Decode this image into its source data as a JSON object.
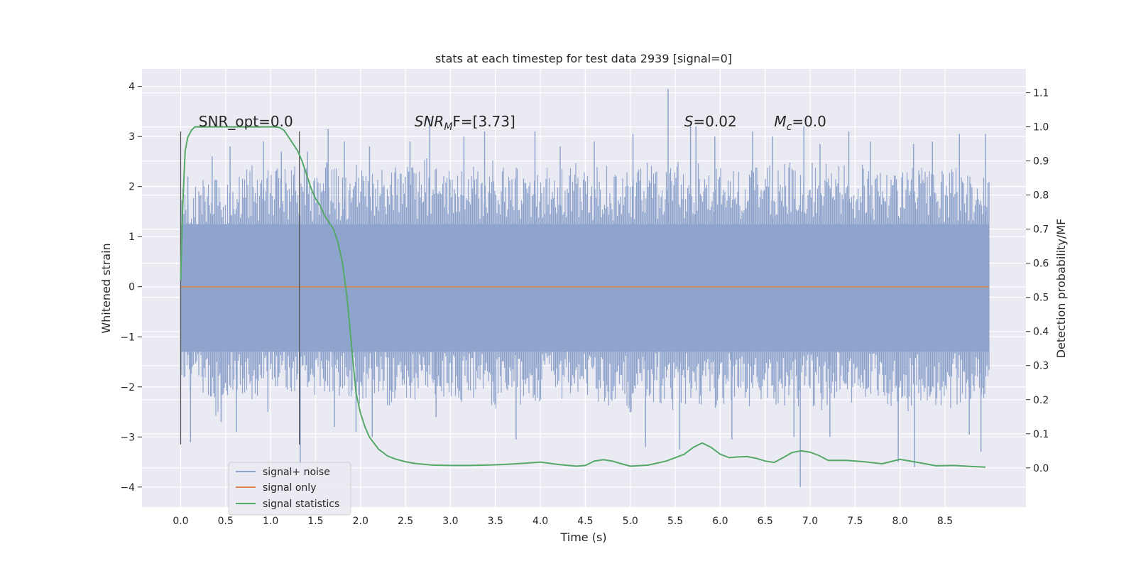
{
  "chart_data": {
    "type": "line",
    "title": "stats at each timestep for test data 2939 [signal=0]",
    "xlabel": "Time (s)",
    "ylabel": "Whitened strain",
    "y2label": "Detection probability/MF",
    "xlim": [
      -0.43,
      9.4
    ],
    "ylim": [
      -4.4,
      4.35
    ],
    "y2lim": [
      -0.115,
      1.17
    ],
    "xticks": [
      0.0,
      0.5,
      1.0,
      1.5,
      2.0,
      2.5,
      3.0,
      3.5,
      4.0,
      4.5,
      5.0,
      5.5,
      6.0,
      6.5,
      7.0,
      7.5,
      8.0,
      8.5
    ],
    "xtick_labels": [
      "0.0",
      "0.5",
      "1.0",
      "1.5",
      "2.0",
      "2.5",
      "3.0",
      "3.5",
      "4.0",
      "4.5",
      "5.0",
      "5.5",
      "6.0",
      "6.5",
      "7.0",
      "7.5",
      "8.0",
      "8.5"
    ],
    "yticks": [
      -4,
      -3,
      -2,
      -1,
      0,
      1,
      2,
      3,
      4
    ],
    "ytick_labels": [
      "−4",
      "−3",
      "−2",
      "−1",
      "0",
      "1",
      "2",
      "3",
      "4"
    ],
    "y2ticks": [
      0.0,
      0.1,
      0.2,
      0.3,
      0.4,
      0.5,
      0.6,
      0.7,
      0.8,
      0.9,
      1.0,
      1.1
    ],
    "y2tick_labels": [
      "0.0",
      "0.1",
      "0.2",
      "0.3",
      "0.4",
      "0.5",
      "0.6",
      "0.7",
      "0.8",
      "0.9",
      "1.0",
      "1.1"
    ],
    "grid": true,
    "legend_position": "lower-left",
    "series": [
      {
        "name": "signal+ noise",
        "color": "#8fa4cc",
        "x_range": [
          0.0,
          8.99
        ],
        "envelope": [
          [
            0.0,
            2.1,
            -2.0
          ],
          [
            0.1,
            2.15,
            -2.3
          ],
          [
            0.2,
            2.0,
            -2.1
          ],
          [
            0.3,
            2.4,
            -2.3
          ],
          [
            0.4,
            2.3,
            -2.6
          ],
          [
            0.5,
            2.0,
            -2.2
          ],
          [
            0.6,
            2.2,
            -2.1
          ],
          [
            0.7,
            2.3,
            -2.2
          ],
          [
            0.8,
            2.5,
            -2.4
          ],
          [
            0.9,
            2.2,
            -2.1
          ],
          [
            1.0,
            2.4,
            -2.0
          ],
          [
            1.1,
            2.6,
            -2.2
          ],
          [
            1.2,
            2.3,
            -2.3
          ],
          [
            1.3,
            2.5,
            -2.2
          ],
          [
            1.4,
            2.5,
            -2.1
          ],
          [
            1.5,
            2.3,
            -2.4
          ],
          [
            1.6,
            2.6,
            -2.1
          ],
          [
            1.7,
            2.5,
            -2.3
          ],
          [
            1.8,
            2.3,
            -2.2
          ],
          [
            1.9,
            2.4,
            -2.3
          ],
          [
            2.0,
            2.5,
            -2.4
          ],
          [
            2.1,
            2.3,
            -2.2
          ],
          [
            2.2,
            2.4,
            -2.3
          ],
          [
            2.3,
            2.3,
            -2.4
          ],
          [
            2.4,
            2.4,
            -2.3
          ],
          [
            2.5,
            2.5,
            -2.2
          ],
          [
            2.6,
            2.4,
            -2.4
          ],
          [
            2.7,
            2.6,
            -2.3
          ],
          [
            2.8,
            2.5,
            -2.2
          ],
          [
            2.9,
            2.4,
            -2.3
          ],
          [
            3.0,
            2.3,
            -2.3
          ],
          [
            3.1,
            2.5,
            -2.4
          ],
          [
            3.2,
            2.5,
            -2.3
          ],
          [
            3.3,
            2.4,
            -2.2
          ],
          [
            3.4,
            2.6,
            -2.3
          ],
          [
            3.5,
            2.5,
            -2.5
          ],
          [
            3.6,
            2.4,
            -2.4
          ],
          [
            3.7,
            2.5,
            -2.3
          ],
          [
            3.8,
            2.3,
            -2.4
          ],
          [
            3.9,
            2.4,
            -2.2
          ],
          [
            4.0,
            2.5,
            -2.4
          ],
          [
            4.1,
            2.4,
            -2.3
          ],
          [
            4.2,
            2.6,
            -2.4
          ],
          [
            4.3,
            2.4,
            -2.2
          ],
          [
            4.4,
            2.5,
            -2.3
          ],
          [
            4.5,
            2.3,
            -2.4
          ],
          [
            4.6,
            2.4,
            -2.3
          ],
          [
            4.7,
            2.5,
            -2.4
          ],
          [
            4.8,
            2.4,
            -2.5
          ],
          [
            4.9,
            2.3,
            -2.4
          ],
          [
            5.0,
            2.4,
            -2.6
          ],
          [
            5.1,
            2.5,
            -2.4
          ],
          [
            5.2,
            2.6,
            -2.5
          ],
          [
            5.3,
            2.4,
            -2.3
          ],
          [
            5.4,
            2.5,
            -2.4
          ],
          [
            5.5,
            2.6,
            -2.5
          ],
          [
            5.6,
            2.4,
            -2.4
          ],
          [
            5.7,
            2.5,
            -2.3
          ],
          [
            5.8,
            2.6,
            -2.4
          ],
          [
            5.9,
            2.5,
            -2.5
          ],
          [
            6.0,
            2.4,
            -2.4
          ],
          [
            6.1,
            2.5,
            -2.3
          ],
          [
            6.2,
            2.4,
            -2.4
          ],
          [
            6.3,
            2.5,
            -2.5
          ],
          [
            6.4,
            2.4,
            -2.4
          ],
          [
            6.5,
            2.5,
            -2.3
          ],
          [
            6.6,
            2.4,
            -2.4
          ],
          [
            6.7,
            2.6,
            -2.5
          ],
          [
            6.8,
            2.5,
            -2.4
          ],
          [
            6.9,
            2.4,
            -2.5
          ],
          [
            7.0,
            2.5,
            -2.4
          ],
          [
            7.1,
            2.4,
            -2.5
          ],
          [
            7.2,
            2.5,
            -2.4
          ],
          [
            7.3,
            2.4,
            -2.3
          ],
          [
            7.4,
            2.5,
            -2.4
          ],
          [
            7.5,
            2.4,
            -2.5
          ],
          [
            7.6,
            2.5,
            -2.4
          ],
          [
            7.7,
            2.4,
            -2.3
          ],
          [
            7.8,
            2.5,
            -2.4
          ],
          [
            7.9,
            2.4,
            -2.5
          ],
          [
            8.0,
            2.5,
            -2.4
          ],
          [
            8.1,
            2.4,
            -2.5
          ],
          [
            8.2,
            2.5,
            -2.4
          ],
          [
            8.3,
            2.3,
            -2.3
          ],
          [
            8.4,
            2.4,
            -2.4
          ],
          [
            8.5,
            2.3,
            -2.5
          ],
          [
            8.6,
            2.4,
            -2.4
          ],
          [
            8.7,
            2.3,
            -2.3
          ],
          [
            8.8,
            2.4,
            -2.4
          ],
          [
            8.9,
            2.3,
            -2.3
          ],
          [
            8.99,
            2.3,
            -2.2
          ]
        ],
        "spikes": [
          [
            0.08,
            2.2
          ],
          [
            0.11,
            -3.1
          ],
          [
            0.35,
            2.6
          ],
          [
            0.45,
            -2.7
          ],
          [
            0.55,
            2.8
          ],
          [
            0.62,
            -2.9
          ],
          [
            0.92,
            2.9
          ],
          [
            0.97,
            -2.5
          ],
          [
            1.12,
            2.7
          ],
          [
            1.33,
            -3.6
          ],
          [
            1.41,
            2.7
          ],
          [
            1.64,
            3.15
          ],
          [
            1.71,
            -2.8
          ],
          [
            1.82,
            2.9
          ],
          [
            1.95,
            -2.9
          ],
          [
            2.1,
            2.8
          ],
          [
            2.13,
            -3.0
          ],
          [
            2.55,
            2.9
          ],
          [
            2.77,
            3.35
          ],
          [
            2.84,
            -2.6
          ],
          [
            3.15,
            3.0
          ],
          [
            3.38,
            3.1
          ],
          [
            3.73,
            -3.05
          ],
          [
            3.94,
            3.1
          ],
          [
            4.22,
            2.8
          ],
          [
            4.6,
            2.9
          ],
          [
            5.03,
            3.05
          ],
          [
            5.17,
            -3.2
          ],
          [
            5.42,
            3.95
          ],
          [
            5.55,
            -3.25
          ],
          [
            5.67,
            3.2
          ],
          [
            5.73,
            3.2
          ],
          [
            5.94,
            3.0
          ],
          [
            6.13,
            -3.05
          ],
          [
            6.36,
            3.1
          ],
          [
            6.58,
            3.0
          ],
          [
            6.82,
            -3.0
          ],
          [
            6.89,
            -4.0
          ],
          [
            6.93,
            3.2
          ],
          [
            7.11,
            2.85
          ],
          [
            7.22,
            -3.0
          ],
          [
            7.43,
            3.1
          ],
          [
            7.67,
            2.9
          ],
          [
            7.98,
            -3.5
          ],
          [
            8.15,
            2.85
          ],
          [
            8.16,
            -3.6
          ],
          [
            8.36,
            2.9
          ],
          [
            8.66,
            3.05
          ],
          [
            8.77,
            -2.95
          ],
          [
            8.9,
            -3.3
          ],
          [
            8.95,
            3.05
          ]
        ]
      },
      {
        "name": "signal only",
        "color": "#dd8452",
        "x": [
          0.0,
          8.99
        ],
        "y": [
          0.0,
          0.0
        ]
      },
      {
        "name": "signal statistics",
        "color": "#55a868",
        "axis": "right",
        "x": [
          0.0,
          0.02,
          0.05,
          0.08,
          0.12,
          0.16,
          0.2,
          0.3,
          0.4,
          0.5,
          0.6,
          0.7,
          0.8,
          0.9,
          1.0,
          1.05,
          1.1,
          1.15,
          1.2,
          1.25,
          1.3,
          1.35,
          1.4,
          1.45,
          1.5,
          1.55,
          1.6,
          1.65,
          1.7,
          1.75,
          1.8,
          1.85,
          1.9,
          1.95,
          2.0,
          2.05,
          2.1,
          2.2,
          2.3,
          2.4,
          2.5,
          2.6,
          2.8,
          3.0,
          3.2,
          3.4,
          3.6,
          3.8,
          4.0,
          4.2,
          4.4,
          4.5,
          4.6,
          4.7,
          4.8,
          4.9,
          5.0,
          5.2,
          5.4,
          5.5,
          5.6,
          5.7,
          5.8,
          5.9,
          6.0,
          6.1,
          6.2,
          6.3,
          6.4,
          6.5,
          6.6,
          6.7,
          6.8,
          6.9,
          7.0,
          7.1,
          7.2,
          7.4,
          7.6,
          7.8,
          8.0,
          8.2,
          8.4,
          8.6,
          8.8,
          8.95
        ],
        "y": [
          0.55,
          0.75,
          0.93,
          0.97,
          0.99,
          1.0,
          1.0,
          1.0,
          1.0,
          1.0,
          1.0,
          1.0,
          1.0,
          1.0,
          1.0,
          1.0,
          0.998,
          0.99,
          0.97,
          0.95,
          0.93,
          0.9,
          0.86,
          0.82,
          0.79,
          0.77,
          0.74,
          0.72,
          0.7,
          0.66,
          0.6,
          0.5,
          0.36,
          0.22,
          0.16,
          0.12,
          0.09,
          0.055,
          0.035,
          0.025,
          0.018,
          0.013,
          0.008,
          0.007,
          0.007,
          0.008,
          0.01,
          0.013,
          0.017,
          0.01,
          0.005,
          0.007,
          0.02,
          0.024,
          0.02,
          0.012,
          0.005,
          0.008,
          0.02,
          0.03,
          0.04,
          0.06,
          0.073,
          0.06,
          0.04,
          0.03,
          0.032,
          0.033,
          0.028,
          0.02,
          0.016,
          0.03,
          0.045,
          0.05,
          0.046,
          0.036,
          0.022,
          0.022,
          0.018,
          0.012,
          0.025,
          0.016,
          0.006,
          0.007,
          0.004,
          0.002
        ]
      }
    ],
    "vlines": [
      {
        "x": 0.0,
        "y": [
          -3.15,
          3.1
        ],
        "color": "#555555"
      },
      {
        "x": 1.32,
        "y": [
          -3.15,
          3.1
        ],
        "color": "#555555"
      }
    ],
    "annotations": [
      {
        "id": "snr_opt",
        "text": "SNR_opt=0.0",
        "x": 0.2,
        "y": 3.2
      },
      {
        "id": "snr_mf",
        "base": "SNR",
        "sub": "M",
        "rest": "F=[3.73]",
        "x": 2.6,
        "y": 3.2
      },
      {
        "id": "s",
        "base": "S",
        "rest": "=0.02",
        "x": 5.6,
        "y": 3.2
      },
      {
        "id": "mc",
        "base": "M",
        "sub": "c",
        "rest": "=0.0",
        "x": 6.6,
        "y": 3.2
      }
    ]
  }
}
